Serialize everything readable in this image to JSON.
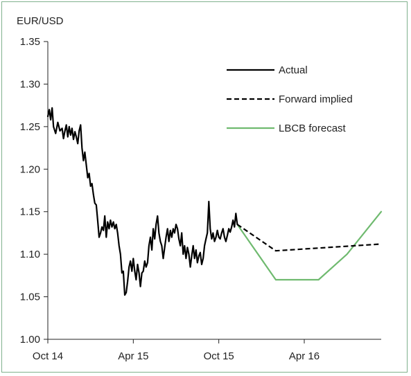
{
  "chart_data": {
    "type": "line",
    "title": "",
    "ylabel": "EUR/USD",
    "xlabel": "",
    "ylim": [
      1.0,
      1.35
    ],
    "yticks": [
      "1.00",
      "1.05",
      "1.10",
      "1.15",
      "1.20",
      "1.25",
      "1.30",
      "1.35"
    ],
    "xticks": [
      {
        "label": "Oct 14",
        "t": 0
      },
      {
        "label": "Apr 15",
        "t": 6
      },
      {
        "label": "Oct 15",
        "t": 12
      },
      {
        "label": "Apr 16",
        "t": 18
      }
    ],
    "x_unit": "months from Oct 14",
    "xlim": [
      0,
      23.4
    ],
    "grid": false,
    "legend": "top-right",
    "series": [
      {
        "name": "Actual",
        "style": "solid",
        "color": "#000000",
        "points": [
          [
            0.0,
            1.262
          ],
          [
            0.1,
            1.27
          ],
          [
            0.2,
            1.258
          ],
          [
            0.3,
            1.272
          ],
          [
            0.4,
            1.25
          ],
          [
            0.55,
            1.242
          ],
          [
            0.7,
            1.255
          ],
          [
            0.85,
            1.245
          ],
          [
            1.0,
            1.248
          ],
          [
            1.1,
            1.236
          ],
          [
            1.2,
            1.245
          ],
          [
            1.3,
            1.252
          ],
          [
            1.4,
            1.238
          ],
          [
            1.5,
            1.25
          ],
          [
            1.6,
            1.24
          ],
          [
            1.7,
            1.248
          ],
          [
            1.8,
            1.235
          ],
          [
            1.9,
            1.244
          ],
          [
            2.0,
            1.238
          ],
          [
            2.1,
            1.23
          ],
          [
            2.2,
            1.245
          ],
          [
            2.3,
            1.252
          ],
          [
            2.4,
            1.225
          ],
          [
            2.5,
            1.21
          ],
          [
            2.6,
            1.22
          ],
          [
            2.7,
            1.205
          ],
          [
            2.8,
            1.19
          ],
          [
            2.9,
            1.195
          ],
          [
            3.0,
            1.18
          ],
          [
            3.1,
            1.183
          ],
          [
            3.2,
            1.17
          ],
          [
            3.3,
            1.16
          ],
          [
            3.4,
            1.158
          ],
          [
            3.5,
            1.14
          ],
          [
            3.6,
            1.12
          ],
          [
            3.7,
            1.125
          ],
          [
            3.8,
            1.132
          ],
          [
            3.9,
            1.128
          ],
          [
            4.0,
            1.145
          ],
          [
            4.1,
            1.12
          ],
          [
            4.2,
            1.138
          ],
          [
            4.3,
            1.13
          ],
          [
            4.4,
            1.14
          ],
          [
            4.5,
            1.132
          ],
          [
            4.6,
            1.138
          ],
          [
            4.7,
            1.13
          ],
          [
            4.8,
            1.135
          ],
          [
            4.9,
            1.125
          ],
          [
            5.0,
            1.11
          ],
          [
            5.1,
            1.1
          ],
          [
            5.2,
            1.078
          ],
          [
            5.3,
            1.08
          ],
          [
            5.4,
            1.052
          ],
          [
            5.5,
            1.055
          ],
          [
            5.6,
            1.068
          ],
          [
            5.7,
            1.085
          ],
          [
            5.8,
            1.092
          ],
          [
            5.9,
            1.08
          ],
          [
            6.0,
            1.095
          ],
          [
            6.1,
            1.08
          ],
          [
            6.2,
            1.07
          ],
          [
            6.3,
            1.088
          ],
          [
            6.4,
            1.078
          ],
          [
            6.5,
            1.062
          ],
          [
            6.6,
            1.078
          ],
          [
            6.7,
            1.08
          ],
          [
            6.8,
            1.092
          ],
          [
            6.9,
            1.085
          ],
          [
            7.0,
            1.09
          ],
          [
            7.1,
            1.11
          ],
          [
            7.2,
            1.12
          ],
          [
            7.3,
            1.105
          ],
          [
            7.4,
            1.13
          ],
          [
            7.5,
            1.118
          ],
          [
            7.6,
            1.135
          ],
          [
            7.7,
            1.145
          ],
          [
            7.8,
            1.125
          ],
          [
            7.9,
            1.115
          ],
          [
            8.0,
            1.11
          ],
          [
            8.1,
            1.095
          ],
          [
            8.2,
            1.108
          ],
          [
            8.3,
            1.12
          ],
          [
            8.4,
            1.13
          ],
          [
            8.5,
            1.115
          ],
          [
            8.6,
            1.128
          ],
          [
            8.7,
            1.12
          ],
          [
            8.8,
            1.13
          ],
          [
            8.9,
            1.125
          ],
          [
            9.0,
            1.135
          ],
          [
            9.1,
            1.13
          ],
          [
            9.2,
            1.118
          ],
          [
            9.3,
            1.11
          ],
          [
            9.4,
            1.125
          ],
          [
            9.5,
            1.1
          ],
          [
            9.6,
            1.11
          ],
          [
            9.7,
            1.095
          ],
          [
            9.8,
            1.108
          ],
          [
            9.9,
            1.1
          ],
          [
            10.0,
            1.085
          ],
          [
            10.1,
            1.098
          ],
          [
            10.2,
            1.11
          ],
          [
            10.3,
            1.095
          ],
          [
            10.4,
            1.105
          ],
          [
            10.5,
            1.09
          ],
          [
            10.6,
            1.098
          ],
          [
            10.7,
            1.102
          ],
          [
            10.8,
            1.088
          ],
          [
            10.9,
            1.095
          ],
          [
            11.0,
            1.11
          ],
          [
            11.1,
            1.118
          ],
          [
            11.2,
            1.125
          ],
          [
            11.3,
            1.162
          ],
          [
            11.4,
            1.13
          ],
          [
            11.5,
            1.118
          ],
          [
            11.6,
            1.125
          ],
          [
            11.7,
            1.115
          ],
          [
            11.8,
            1.12
          ],
          [
            11.9,
            1.128
          ],
          [
            12.0,
            1.12
          ],
          [
            12.1,
            1.118
          ],
          [
            12.2,
            1.125
          ],
          [
            12.3,
            1.13
          ],
          [
            12.4,
            1.12
          ],
          [
            12.5,
            1.115
          ],
          [
            12.6,
            1.122
          ],
          [
            12.7,
            1.13
          ],
          [
            12.8,
            1.126
          ],
          [
            12.9,
            1.132
          ],
          [
            13.0,
            1.14
          ],
          [
            13.1,
            1.132
          ],
          [
            13.2,
            1.148
          ],
          [
            13.3,
            1.135
          ]
        ]
      },
      {
        "name": "Forward implied",
        "style": "dashed",
        "color": "#000000",
        "points": [
          [
            13.3,
            1.135
          ],
          [
            16.0,
            1.104
          ],
          [
            23.4,
            1.112
          ]
        ]
      },
      {
        "name": "LBCB forecast",
        "style": "solid",
        "color": "#6fba6f",
        "points": [
          [
            13.3,
            1.135
          ],
          [
            16.0,
            1.07
          ],
          [
            19.0,
            1.07
          ],
          [
            21.0,
            1.1
          ],
          [
            23.4,
            1.15
          ]
        ]
      }
    ]
  }
}
